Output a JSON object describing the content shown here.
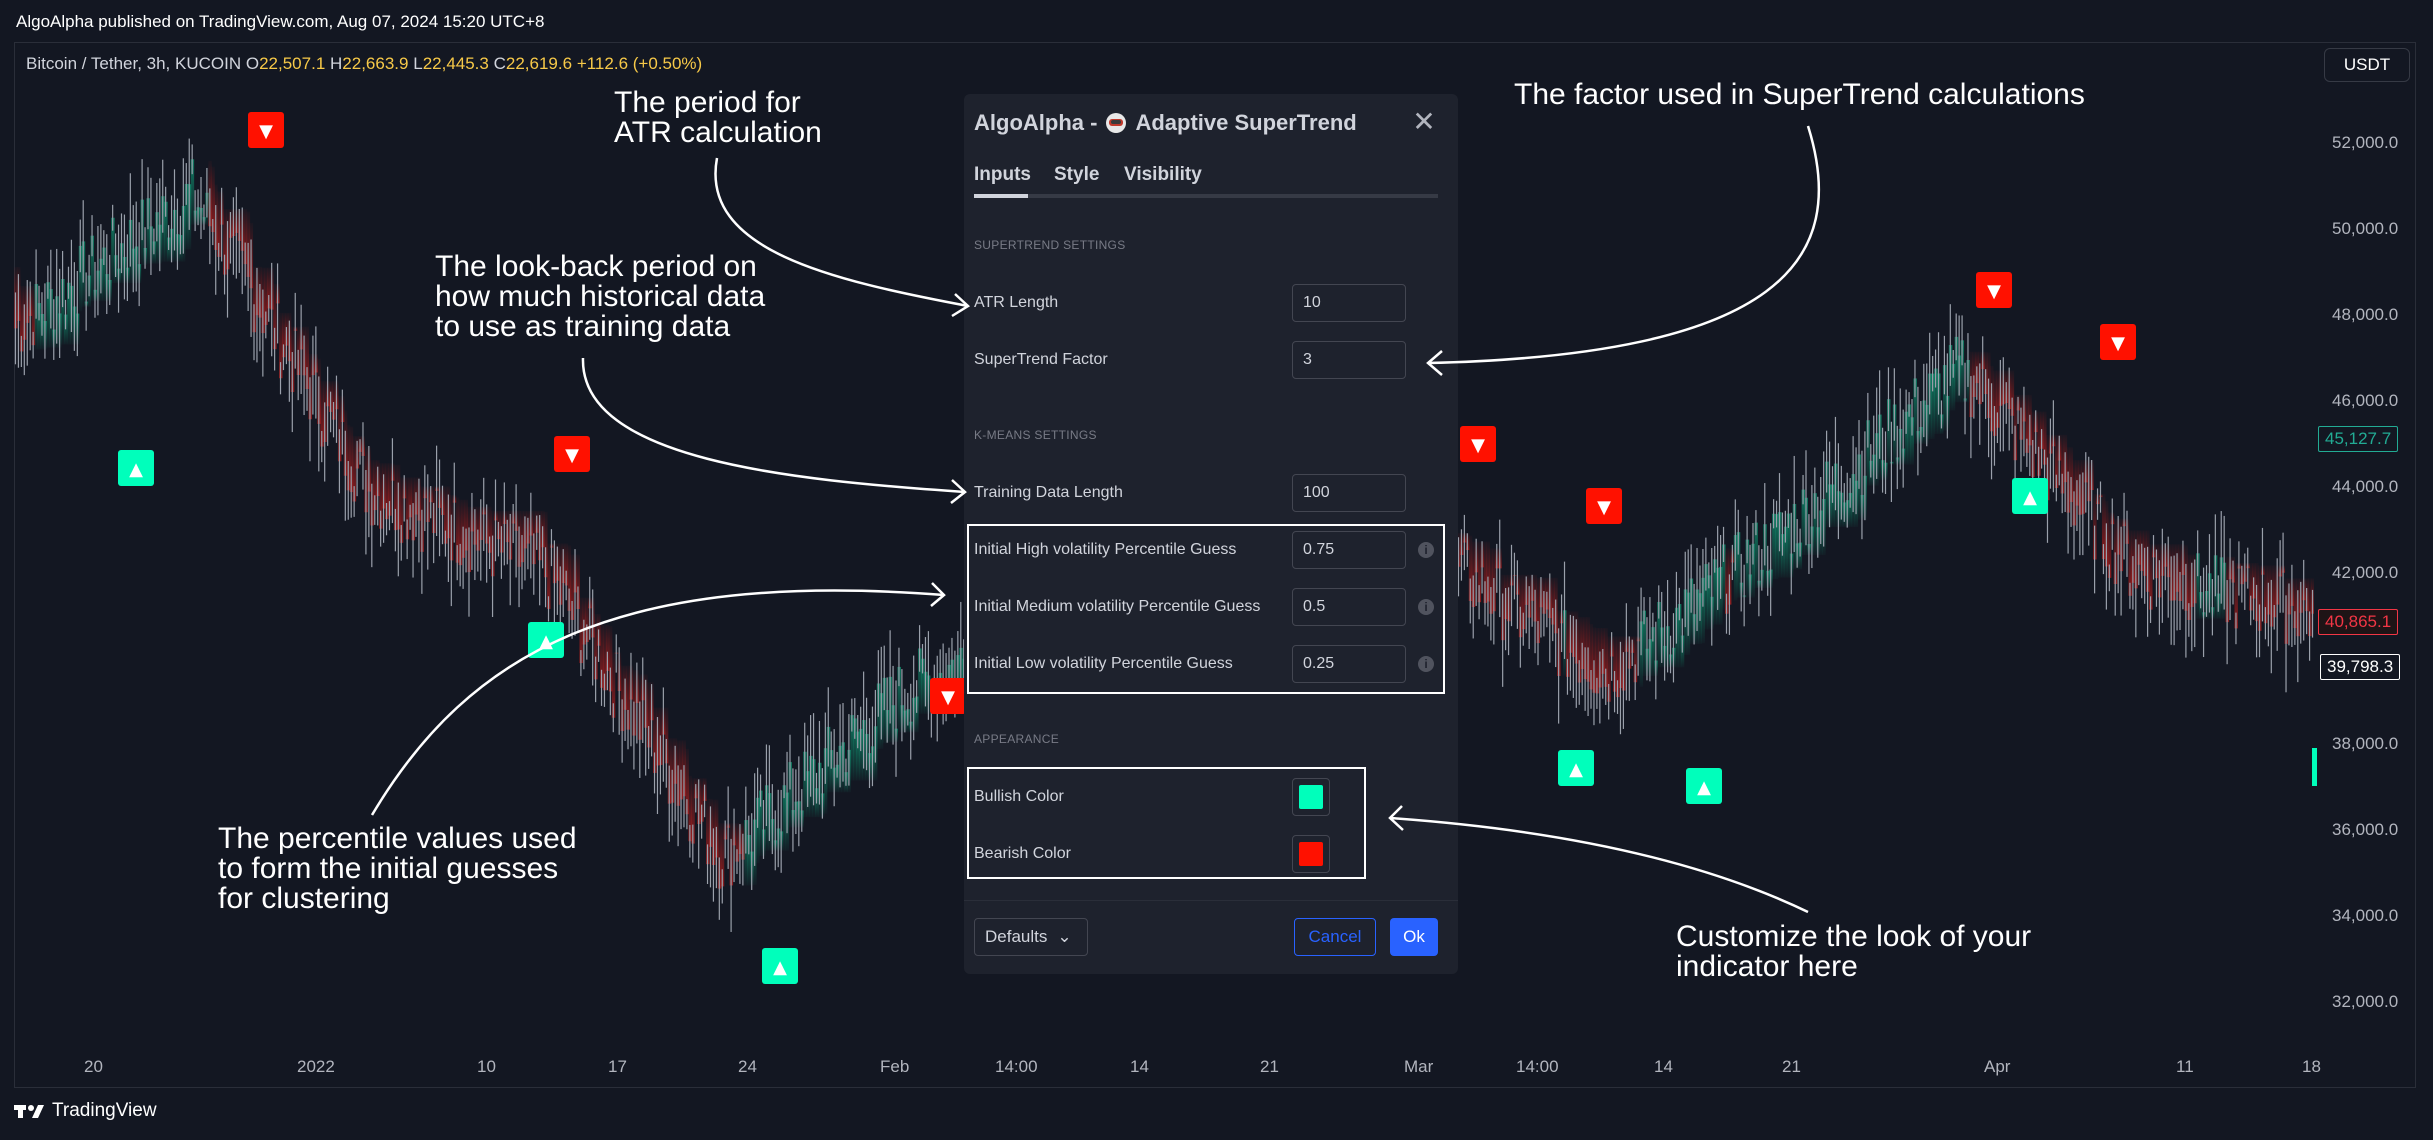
{
  "header": {
    "published": "AlgoAlpha published on TradingView.com, Aug 07, 2024 15:20 UTC+8",
    "symbol": "Bitcoin / Tether, 3h, KUCOIN",
    "o_label": "O",
    "o_value": "22,507.1",
    "h_label": "H",
    "h_value": "22,663.9",
    "l_label": "L",
    "l_value": "22,445.3",
    "c_label": "C",
    "c_value": "22,619.6",
    "change": "+112.6 (+0.50%)",
    "currency": "USDT"
  },
  "price_axis": {
    "ticks": [
      "52,000.0",
      "50,000.0",
      "48,000.0",
      "46,000.0",
      "44,000.0",
      "42,000.0",
      "38,000.0",
      "36,000.0",
      "34,000.0",
      "32,000.0"
    ],
    "last_price": "45,127.7",
    "red_price": "40,865.1",
    "white_price": "39,798.3"
  },
  "time_axis": {
    "ticks": [
      "20",
      "2022",
      "10",
      "17",
      "24",
      "Feb",
      "14:00",
      "14",
      "21",
      "Mar",
      "14:00",
      "14",
      "21",
      "Apr",
      "11",
      "18"
    ]
  },
  "chart_data": {
    "type": "line",
    "series_name": "Bitcoin / Tether, 3h, KUCOIN",
    "x": [
      "20",
      "2022",
      "10",
      "17",
      "24",
      "Feb",
      "14",
      "21",
      "Mar",
      "14",
      "21",
      "Apr",
      "11",
      "18"
    ],
    "y": [
      47500,
      50800,
      43500,
      41500,
      34500,
      38500,
      41000,
      40000,
      42000,
      39000,
      42500,
      46500,
      41500,
      40500
    ],
    "ylim": [
      31000,
      54000
    ],
    "colors": {
      "bullish": "#00ffbb",
      "bearish": "#ff1100",
      "bull_fill": "#0f8a6b",
      "bear_fill": "#a31d1d"
    }
  },
  "signals": {
    "buy": "▲",
    "sell": "▼"
  },
  "dialog": {
    "brand": "AlgoAlpha -",
    "name": "Adaptive SuperTrend",
    "close": "✕",
    "tabs": [
      "Inputs",
      "Style",
      "Visibility"
    ],
    "sections": {
      "supertrend": "SUPERTREND SETTINGS",
      "kmeans": "K-MEANS SETTINGS",
      "appearance": "APPEARANCE"
    },
    "fields": {
      "atr_length": {
        "label": "ATR Length",
        "value": "10"
      },
      "st_factor": {
        "label": "SuperTrend Factor",
        "value": "3"
      },
      "training": {
        "label": "Training Data Length",
        "value": "100"
      },
      "high_vol": {
        "label": "Initial High volatility Percentile Guess",
        "value": "0.75"
      },
      "med_vol": {
        "label": "Initial Medium volatility Percentile Guess",
        "value": "0.5"
      },
      "low_vol": {
        "label": "Initial Low volatility Percentile Guess",
        "value": "0.25"
      },
      "bullish": {
        "label": "Bullish Color",
        "color": "#00ffbb"
      },
      "bearish": {
        "label": "Bearish Color",
        "color": "#ff1100"
      }
    },
    "info_icon": "i",
    "defaults": "Defaults",
    "chevron": "⌄",
    "cancel": "Cancel",
    "ok": "Ok"
  },
  "annotations": {
    "atr_period": "The period for\nATR calculation",
    "factor": "The factor used in SuperTrend calculations",
    "lookback": "The look-back period on\nhow much historical data\nto use as training data",
    "percentile": "The percentile values used\nto form the initial guesses\nfor clustering",
    "appearance": "Customize the look of your\nindicator here"
  },
  "footer": {
    "brand": "TradingView",
    "logo": "tradingview-logo"
  }
}
